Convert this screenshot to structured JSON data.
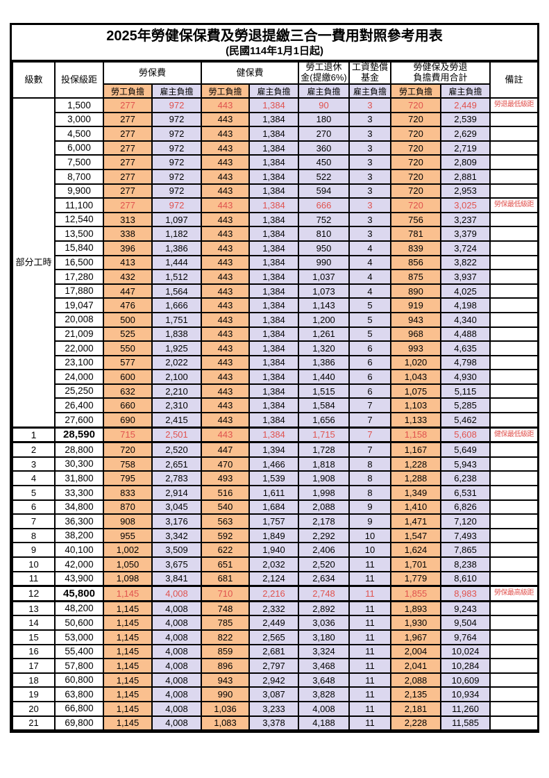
{
  "title": "2025年勞健保保費及勞退提繳三合一費用對照參考用表",
  "subtitle": "(民國114年1月1日起)",
  "columns": {
    "grade": "級數",
    "bracket": "投保級距",
    "labor_insurance": "勞保費",
    "health_insurance": "健保費",
    "pension_l1": "勞工退休",
    "pension_l2": "金(提繳6%)",
    "wage_fund_l1": "工資墊償",
    "wage_fund_l2": "基金",
    "total_l1": "勞健保及勞退",
    "total_l2": "負擔費用合計",
    "remark": "備註",
    "employee_burden": "勞工負擔",
    "employer_burden": "雇主負擔"
  },
  "part_time_label": "部分工時",
  "colors": {
    "employee_bg": "#fac08f",
    "employer_bg": "#dcd8ef",
    "highlight_text": "#e0524e"
  },
  "rows": [
    {
      "grade": "",
      "bracket": "1,500",
      "li_emp": "277",
      "li_er": "972",
      "hi_emp": "443",
      "hi_er": "1,384",
      "pension": "90",
      "fund": "3",
      "tot_emp": "720",
      "tot_er": "2,449",
      "remark": "勞退最低級距",
      "red": true,
      "big": false
    },
    {
      "grade": "",
      "bracket": "3,000",
      "li_emp": "277",
      "li_er": "972",
      "hi_emp": "443",
      "hi_er": "1,384",
      "pension": "180",
      "fund": "3",
      "tot_emp": "720",
      "tot_er": "2,539",
      "remark": "",
      "red": false,
      "big": false
    },
    {
      "grade": "",
      "bracket": "4,500",
      "li_emp": "277",
      "li_er": "972",
      "hi_emp": "443",
      "hi_er": "1,384",
      "pension": "270",
      "fund": "3",
      "tot_emp": "720",
      "tot_er": "2,629",
      "remark": "",
      "red": false,
      "big": false
    },
    {
      "grade": "",
      "bracket": "6,000",
      "li_emp": "277",
      "li_er": "972",
      "hi_emp": "443",
      "hi_er": "1,384",
      "pension": "360",
      "fund": "3",
      "tot_emp": "720",
      "tot_er": "2,719",
      "remark": "",
      "red": false,
      "big": false
    },
    {
      "grade": "",
      "bracket": "7,500",
      "li_emp": "277",
      "li_er": "972",
      "hi_emp": "443",
      "hi_er": "1,384",
      "pension": "450",
      "fund": "3",
      "tot_emp": "720",
      "tot_er": "2,809",
      "remark": "",
      "red": false,
      "big": false
    },
    {
      "grade": "",
      "bracket": "8,700",
      "li_emp": "277",
      "li_er": "972",
      "hi_emp": "443",
      "hi_er": "1,384",
      "pension": "522",
      "fund": "3",
      "tot_emp": "720",
      "tot_er": "2,881",
      "remark": "",
      "red": false,
      "big": false
    },
    {
      "grade": "",
      "bracket": "9,900",
      "li_emp": "277",
      "li_er": "972",
      "hi_emp": "443",
      "hi_er": "1,384",
      "pension": "594",
      "fund": "3",
      "tot_emp": "720",
      "tot_er": "2,953",
      "remark": "",
      "red": false,
      "big": false
    },
    {
      "grade": "",
      "bracket": "11,100",
      "li_emp": "277",
      "li_er": "972",
      "hi_emp": "443",
      "hi_er": "1,384",
      "pension": "666",
      "fund": "3",
      "tot_emp": "720",
      "tot_er": "3,025",
      "remark": "勞保最低級距",
      "red": true,
      "big": false
    },
    {
      "grade": "",
      "bracket": "12,540",
      "li_emp": "313",
      "li_er": "1,097",
      "hi_emp": "443",
      "hi_er": "1,384",
      "pension": "752",
      "fund": "3",
      "tot_emp": "756",
      "tot_er": "3,237",
      "remark": "",
      "red": false,
      "big": false
    },
    {
      "grade": "",
      "bracket": "13,500",
      "li_emp": "338",
      "li_er": "1,182",
      "hi_emp": "443",
      "hi_er": "1,384",
      "pension": "810",
      "fund": "3",
      "tot_emp": "781",
      "tot_er": "3,379",
      "remark": "",
      "red": false,
      "big": false
    },
    {
      "grade": "",
      "bracket": "15,840",
      "li_emp": "396",
      "li_er": "1,386",
      "hi_emp": "443",
      "hi_er": "1,384",
      "pension": "950",
      "fund": "4",
      "tot_emp": "839",
      "tot_er": "3,724",
      "remark": "",
      "red": false,
      "big": false
    },
    {
      "grade": "",
      "bracket": "16,500",
      "li_emp": "413",
      "li_er": "1,444",
      "hi_emp": "443",
      "hi_er": "1,384",
      "pension": "990",
      "fund": "4",
      "tot_emp": "856",
      "tot_er": "3,822",
      "remark": "",
      "red": false,
      "big": false
    },
    {
      "grade": "",
      "bracket": "17,280",
      "li_emp": "432",
      "li_er": "1,512",
      "hi_emp": "443",
      "hi_er": "1,384",
      "pension": "1,037",
      "fund": "4",
      "tot_emp": "875",
      "tot_er": "3,937",
      "remark": "",
      "red": false,
      "big": false
    },
    {
      "grade": "",
      "bracket": "17,880",
      "li_emp": "447",
      "li_er": "1,564",
      "hi_emp": "443",
      "hi_er": "1,384",
      "pension": "1,073",
      "fund": "4",
      "tot_emp": "890",
      "tot_er": "4,025",
      "remark": "",
      "red": false,
      "big": false
    },
    {
      "grade": "",
      "bracket": "19,047",
      "li_emp": "476",
      "li_er": "1,666",
      "hi_emp": "443",
      "hi_er": "1,384",
      "pension": "1,143",
      "fund": "5",
      "tot_emp": "919",
      "tot_er": "4,198",
      "remark": "",
      "red": false,
      "big": false
    },
    {
      "grade": "",
      "bracket": "20,008",
      "li_emp": "500",
      "li_er": "1,751",
      "hi_emp": "443",
      "hi_er": "1,384",
      "pension": "1,200",
      "fund": "5",
      "tot_emp": "943",
      "tot_er": "4,340",
      "remark": "",
      "red": false,
      "big": false
    },
    {
      "grade": "",
      "bracket": "21,009",
      "li_emp": "525",
      "li_er": "1,838",
      "hi_emp": "443",
      "hi_er": "1,384",
      "pension": "1,261",
      "fund": "5",
      "tot_emp": "968",
      "tot_er": "4,488",
      "remark": "",
      "red": false,
      "big": false
    },
    {
      "grade": "",
      "bracket": "22,000",
      "li_emp": "550",
      "li_er": "1,925",
      "hi_emp": "443",
      "hi_er": "1,384",
      "pension": "1,320",
      "fund": "6",
      "tot_emp": "993",
      "tot_er": "4,635",
      "remark": "",
      "red": false,
      "big": false
    },
    {
      "grade": "",
      "bracket": "23,100",
      "li_emp": "577",
      "li_er": "2,022",
      "hi_emp": "443",
      "hi_er": "1,384",
      "pension": "1,386",
      "fund": "6",
      "tot_emp": "1,020",
      "tot_er": "4,798",
      "remark": "",
      "red": false,
      "big": false
    },
    {
      "grade": "",
      "bracket": "24,000",
      "li_emp": "600",
      "li_er": "2,100",
      "hi_emp": "443",
      "hi_er": "1,384",
      "pension": "1,440",
      "fund": "6",
      "tot_emp": "1,043",
      "tot_er": "4,930",
      "remark": "",
      "red": false,
      "big": false
    },
    {
      "grade": "",
      "bracket": "25,250",
      "li_emp": "632",
      "li_er": "2,210",
      "hi_emp": "443",
      "hi_er": "1,384",
      "pension": "1,515",
      "fund": "6",
      "tot_emp": "1,075",
      "tot_er": "5,115",
      "remark": "",
      "red": false,
      "big": false
    },
    {
      "grade": "",
      "bracket": "26,400",
      "li_emp": "660",
      "li_er": "2,310",
      "hi_emp": "443",
      "hi_er": "1,384",
      "pension": "1,584",
      "fund": "7",
      "tot_emp": "1,103",
      "tot_er": "5,285",
      "remark": "",
      "red": false,
      "big": false
    },
    {
      "grade": "",
      "bracket": "27,600",
      "li_emp": "690",
      "li_er": "2,415",
      "hi_emp": "443",
      "hi_er": "1,384",
      "pension": "1,656",
      "fund": "7",
      "tot_emp": "1,133",
      "tot_er": "5,462",
      "remark": "",
      "red": false,
      "big": false
    },
    {
      "grade": "1",
      "bracket": "28,590",
      "li_emp": "715",
      "li_er": "2,501",
      "hi_emp": "443",
      "hi_er": "1,384",
      "pension": "1,715",
      "fund": "7",
      "tot_emp": "1,158",
      "tot_er": "5,608",
      "remark": "健保最低級距",
      "red": true,
      "big": true
    },
    {
      "grade": "2",
      "bracket": "28,800",
      "li_emp": "720",
      "li_er": "2,520",
      "hi_emp": "447",
      "hi_er": "1,394",
      "pension": "1,728",
      "fund": "7",
      "tot_emp": "1,167",
      "tot_er": "5,649",
      "remark": "",
      "red": false,
      "big": false
    },
    {
      "grade": "3",
      "bracket": "30,300",
      "li_emp": "758",
      "li_er": "2,651",
      "hi_emp": "470",
      "hi_er": "1,466",
      "pension": "1,818",
      "fund": "8",
      "tot_emp": "1,228",
      "tot_er": "5,943",
      "remark": "",
      "red": false,
      "big": false
    },
    {
      "grade": "4",
      "bracket": "31,800",
      "li_emp": "795",
      "li_er": "2,783",
      "hi_emp": "493",
      "hi_er": "1,539",
      "pension": "1,908",
      "fund": "8",
      "tot_emp": "1,288",
      "tot_er": "6,238",
      "remark": "",
      "red": false,
      "big": false
    },
    {
      "grade": "5",
      "bracket": "33,300",
      "li_emp": "833",
      "li_er": "2,914",
      "hi_emp": "516",
      "hi_er": "1,611",
      "pension": "1,998",
      "fund": "8",
      "tot_emp": "1,349",
      "tot_er": "6,531",
      "remark": "",
      "red": false,
      "big": false
    },
    {
      "grade": "6",
      "bracket": "34,800",
      "li_emp": "870",
      "li_er": "3,045",
      "hi_emp": "540",
      "hi_er": "1,684",
      "pension": "2,088",
      "fund": "9",
      "tot_emp": "1,410",
      "tot_er": "6,826",
      "remark": "",
      "red": false,
      "big": false
    },
    {
      "grade": "7",
      "bracket": "36,300",
      "li_emp": "908",
      "li_er": "3,176",
      "hi_emp": "563",
      "hi_er": "1,757",
      "pension": "2,178",
      "fund": "9",
      "tot_emp": "1,471",
      "tot_er": "7,120",
      "remark": "",
      "red": false,
      "big": false
    },
    {
      "grade": "8",
      "bracket": "38,200",
      "li_emp": "955",
      "li_er": "3,342",
      "hi_emp": "592",
      "hi_er": "1,849",
      "pension": "2,292",
      "fund": "10",
      "tot_emp": "1,547",
      "tot_er": "7,493",
      "remark": "",
      "red": false,
      "big": false
    },
    {
      "grade": "9",
      "bracket": "40,100",
      "li_emp": "1,002",
      "li_er": "3,509",
      "hi_emp": "622",
      "hi_er": "1,940",
      "pension": "2,406",
      "fund": "10",
      "tot_emp": "1,624",
      "tot_er": "7,865",
      "remark": "",
      "red": false,
      "big": false
    },
    {
      "grade": "10",
      "bracket": "42,000",
      "li_emp": "1,050",
      "li_er": "3,675",
      "hi_emp": "651",
      "hi_er": "2,032",
      "pension": "2,520",
      "fund": "11",
      "tot_emp": "1,701",
      "tot_er": "8,238",
      "remark": "",
      "red": false,
      "big": false
    },
    {
      "grade": "11",
      "bracket": "43,900",
      "li_emp": "1,098",
      "li_er": "3,841",
      "hi_emp": "681",
      "hi_er": "2,124",
      "pension": "2,634",
      "fund": "11",
      "tot_emp": "1,779",
      "tot_er": "8,610",
      "remark": "",
      "red": false,
      "big": false
    },
    {
      "grade": "12",
      "bracket": "45,800",
      "li_emp": "1,145",
      "li_er": "4,008",
      "hi_emp": "710",
      "hi_er": "2,216",
      "pension": "2,748",
      "fund": "11",
      "tot_emp": "1,855",
      "tot_er": "8,983",
      "remark": "勞保最高級距",
      "red": true,
      "big": true
    },
    {
      "grade": "13",
      "bracket": "48,200",
      "li_emp": "1,145",
      "li_er": "4,008",
      "hi_emp": "748",
      "hi_er": "2,332",
      "pension": "2,892",
      "fund": "11",
      "tot_emp": "1,893",
      "tot_er": "9,243",
      "remark": "",
      "red": false,
      "big": false
    },
    {
      "grade": "14",
      "bracket": "50,600",
      "li_emp": "1,145",
      "li_er": "4,008",
      "hi_emp": "785",
      "hi_er": "2,449",
      "pension": "3,036",
      "fund": "11",
      "tot_emp": "1,930",
      "tot_er": "9,504",
      "remark": "",
      "red": false,
      "big": false
    },
    {
      "grade": "15",
      "bracket": "53,000",
      "li_emp": "1,145",
      "li_er": "4,008",
      "hi_emp": "822",
      "hi_er": "2,565",
      "pension": "3,180",
      "fund": "11",
      "tot_emp": "1,967",
      "tot_er": "9,764",
      "remark": "",
      "red": false,
      "big": false
    },
    {
      "grade": "16",
      "bracket": "55,400",
      "li_emp": "1,145",
      "li_er": "4,008",
      "hi_emp": "859",
      "hi_er": "2,681",
      "pension": "3,324",
      "fund": "11",
      "tot_emp": "2,004",
      "tot_er": "10,024",
      "remark": "",
      "red": false,
      "big": false
    },
    {
      "grade": "17",
      "bracket": "57,800",
      "li_emp": "1,145",
      "li_er": "4,008",
      "hi_emp": "896",
      "hi_er": "2,797",
      "pension": "3,468",
      "fund": "11",
      "tot_emp": "2,041",
      "tot_er": "10,284",
      "remark": "",
      "red": false,
      "big": false
    },
    {
      "grade": "18",
      "bracket": "60,800",
      "li_emp": "1,145",
      "li_er": "4,008",
      "hi_emp": "943",
      "hi_er": "2,942",
      "pension": "3,648",
      "fund": "11",
      "tot_emp": "2,088",
      "tot_er": "10,609",
      "remark": "",
      "red": false,
      "big": false
    },
    {
      "grade": "19",
      "bracket": "63,800",
      "li_emp": "1,145",
      "li_er": "4,008",
      "hi_emp": "990",
      "hi_er": "3,087",
      "pension": "3,828",
      "fund": "11",
      "tot_emp": "2,135",
      "tot_er": "10,934",
      "remark": "",
      "red": false,
      "big": false
    },
    {
      "grade": "20",
      "bracket": "66,800",
      "li_emp": "1,145",
      "li_er": "4,008",
      "hi_emp": "1,036",
      "hi_er": "3,233",
      "pension": "4,008",
      "fund": "11",
      "tot_emp": "2,181",
      "tot_er": "11,260",
      "remark": "",
      "red": false,
      "big": false
    },
    {
      "grade": "21",
      "bracket": "69,800",
      "li_emp": "1,145",
      "li_er": "4,008",
      "hi_emp": "1,083",
      "hi_er": "3,378",
      "pension": "4,188",
      "fund": "11",
      "tot_emp": "2,228",
      "tot_er": "11,585",
      "remark": "",
      "red": false,
      "big": false
    }
  ]
}
